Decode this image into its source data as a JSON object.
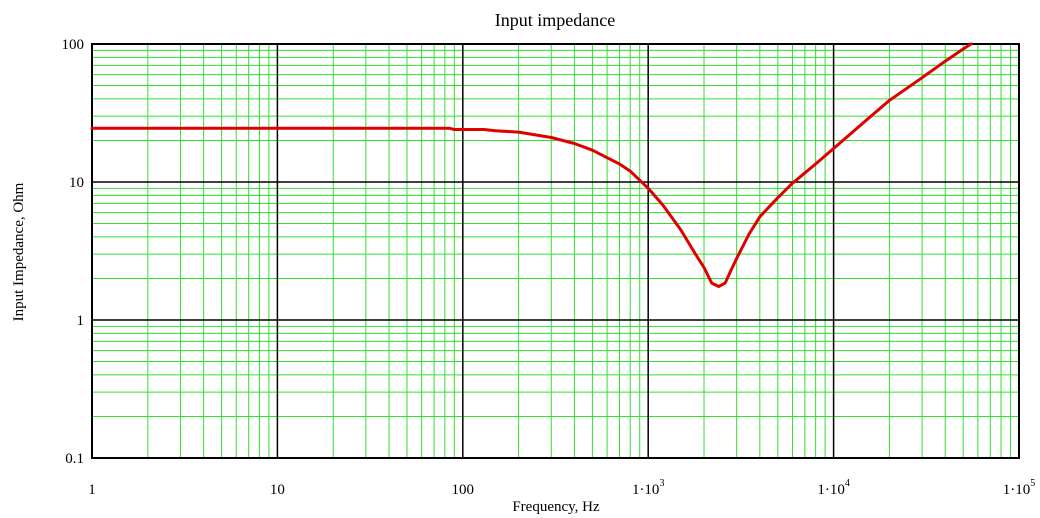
{
  "chart_data": {
    "type": "line",
    "title": "Input impedance",
    "xlabel": "Frequency, Hz",
    "ylabel": "Input Impedance, Ohm",
    "x_scale": "log",
    "y_scale": "log",
    "xlim": [
      1,
      100000
    ],
    "ylim": [
      0.1,
      100
    ],
    "grid": true,
    "x_ticks": [
      {
        "value": 1,
        "label": "1"
      },
      {
        "value": 10,
        "label": "10"
      },
      {
        "value": 100,
        "label": "100"
      },
      {
        "value": 1000,
        "label": "1·10",
        "exp": "3"
      },
      {
        "value": 10000,
        "label": "1·10",
        "exp": "4"
      },
      {
        "value": 100000,
        "label": "1·10",
        "exp": "5"
      }
    ],
    "y_ticks": [
      {
        "value": 0.1,
        "label": "0.1"
      },
      {
        "value": 1,
        "label": "1"
      },
      {
        "value": 10,
        "label": "10"
      },
      {
        "value": 100,
        "label": "100"
      }
    ],
    "colors": {
      "series": "#e00000",
      "minor_grid": "#33dd33",
      "major_grid": "#000000"
    },
    "series": [
      {
        "x": [
          1,
          10,
          50,
          85,
          90,
          100,
          130,
          150,
          200,
          300,
          400,
          500,
          600,
          700,
          800,
          1000,
          1200,
          1500,
          1800,
          2000,
          2200,
          2400,
          2600,
          2800,
          3000,
          3500,
          4000,
          5000,
          6000,
          8000,
          10000,
          15000,
          20000,
          30000,
          40000,
          50000,
          55000
        ],
        "y": [
          24.5,
          24.5,
          24.5,
          24.5,
          24.0,
          24.0,
          24.0,
          23.5,
          23.0,
          21.0,
          19.0,
          17.0,
          15.0,
          13.5,
          12.0,
          9.0,
          6.8,
          4.5,
          3.0,
          2.4,
          1.85,
          1.75,
          1.85,
          2.3,
          2.8,
          4.2,
          5.6,
          7.7,
          9.8,
          13.5,
          17.5,
          28.0,
          39.0,
          57.0,
          75.0,
          92.0,
          100.0
        ]
      }
    ]
  }
}
